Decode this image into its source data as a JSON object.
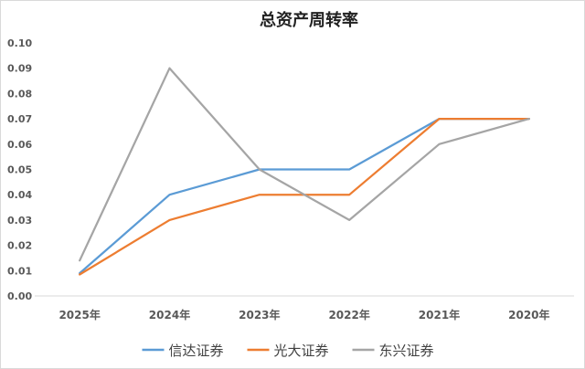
{
  "chart_data": {
    "type": "line",
    "title": "总资产周转率",
    "categories": [
      "2025年",
      "2024年",
      "2023年",
      "2022年",
      "2021年",
      "2020年"
    ],
    "series": [
      {
        "name": "信达证券",
        "color": "#5b9bd5",
        "values": [
          0.009,
          0.04,
          0.05,
          0.05,
          0.07,
          0.07
        ]
      },
      {
        "name": "光大证券",
        "color": "#ed7d31",
        "values": [
          0.0085,
          0.03,
          0.04,
          0.04,
          0.07,
          0.07
        ]
      },
      {
        "name": "东兴证券",
        "color": "#a5a5a5",
        "values": [
          0.014,
          0.09,
          0.05,
          0.03,
          0.06,
          0.07
        ]
      }
    ],
    "ylim": [
      0,
      0.1
    ],
    "yticks": [
      "0.00",
      "0.01",
      "0.02",
      "0.03",
      "0.04",
      "0.05",
      "0.06",
      "0.07",
      "0.08",
      "0.09",
      "0.10"
    ],
    "grid": false,
    "legend": "bottom"
  }
}
